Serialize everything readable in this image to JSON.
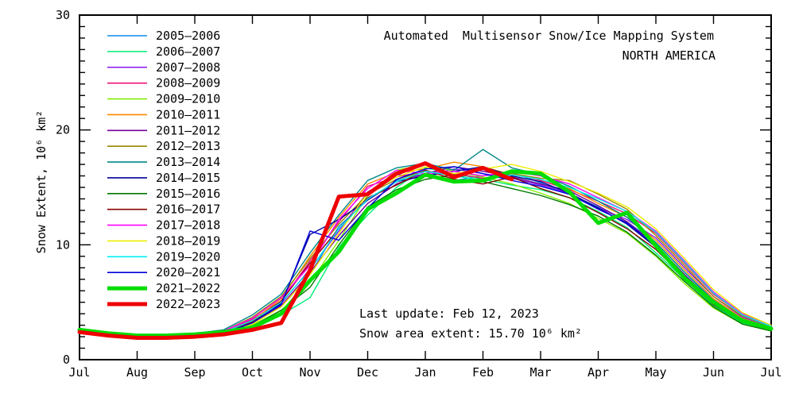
{
  "chart_data": {
    "type": "line",
    "title": "Automated  Multisensor Snow/Ice Mapping System",
    "subtitle": "NORTH AMERICA",
    "ylabel": "Snow Extent, 10⁶ km²",
    "xlabel": "",
    "annotations": {
      "last_update": "Last update: Feb 12, 2023",
      "snow_extent": "Snow area extent: 15.70 10⁶ km²"
    },
    "x_tick_labels": [
      "Jul",
      "Aug",
      "Sep",
      "Oct",
      "Nov",
      "Dec",
      "Jan",
      "Feb",
      "Mar",
      "Apr",
      "May",
      "Jun",
      "Jul"
    ],
    "y_tick_labels": [
      "0",
      "10",
      "20",
      "30"
    ],
    "y_tick_values": [
      0,
      10,
      20,
      30
    ],
    "ylim": [
      0,
      30
    ],
    "xlim_months": [
      0,
      12
    ],
    "y_minor_step": 1,
    "grid": false,
    "legend_position": "inside-top-left",
    "x": [
      0,
      0.5,
      1,
      1.5,
      2,
      2.5,
      3,
      3.5,
      4,
      4.5,
      5,
      5.5,
      6,
      6.5,
      7,
      7.5,
      8,
      8.5,
      9,
      9.5,
      10,
      10.5,
      11,
      11.5,
      12
    ],
    "series": [
      {
        "name": "2005–2006",
        "color": "#0f8ce8",
        "width": 1.4,
        "values": [
          2.6,
          2.3,
          2.1,
          2.0,
          2.1,
          2.4,
          3.1,
          4.6,
          7.4,
          11.6,
          13.9,
          15.6,
          16.2,
          15.6,
          16.0,
          16.3,
          15.4,
          14.4,
          13.3,
          12.0,
          10.2,
          7.6,
          5.2,
          3.6,
          2.8
        ]
      },
      {
        "name": "2006–2007",
        "color": "#00ee77",
        "width": 1.4,
        "values": [
          2.4,
          2.1,
          2.0,
          1.9,
          2.0,
          2.2,
          2.7,
          3.9,
          5.4,
          9.8,
          12.6,
          15.0,
          16.7,
          16.2,
          15.7,
          15.2,
          14.8,
          14.1,
          12.9,
          11.5,
          9.3,
          7.0,
          4.7,
          3.2,
          2.6
        ]
      },
      {
        "name": "2007–2008",
        "color": "#8818ee",
        "width": 1.4,
        "values": [
          2.5,
          2.2,
          2.0,
          2.0,
          2.1,
          2.4,
          3.2,
          4.9,
          7.9,
          11.2,
          14.6,
          16.1,
          16.0,
          16.6,
          16.2,
          15.8,
          15.2,
          14.5,
          13.2,
          12.2,
          10.6,
          8.0,
          5.5,
          3.7,
          2.9
        ]
      },
      {
        "name": "2008–2009",
        "color": "#ee1177",
        "width": 1.4,
        "values": [
          2.6,
          2.2,
          2.1,
          2.0,
          2.2,
          2.5,
          3.5,
          5.1,
          8.6,
          12.0,
          15.1,
          15.9,
          16.4,
          16.2,
          15.8,
          16.2,
          15.6,
          14.8,
          13.8,
          12.7,
          11.0,
          8.4,
          5.7,
          3.9,
          3.0
        ]
      },
      {
        "name": "2009–2010",
        "color": "#7fee00",
        "width": 1.4,
        "values": [
          2.4,
          2.1,
          1.9,
          1.9,
          2.0,
          2.3,
          3.0,
          4.3,
          6.7,
          10.4,
          14.3,
          16.5,
          17.0,
          16.4,
          15.9,
          15.3,
          14.5,
          13.6,
          12.3,
          11.0,
          9.0,
          6.6,
          4.5,
          3.1,
          2.5
        ]
      },
      {
        "name": "2010–2011",
        "color": "#ff8800",
        "width": 1.4,
        "values": [
          2.5,
          2.2,
          2.1,
          2.0,
          2.1,
          2.4,
          3.4,
          5.3,
          9.0,
          12.4,
          15.3,
          16.3,
          16.6,
          17.2,
          16.8,
          16.1,
          15.7,
          14.9,
          13.6,
          12.4,
          10.4,
          7.8,
          5.3,
          3.6,
          2.8
        ]
      },
      {
        "name": "2011–2012",
        "color": "#770099",
        "width": 1.4,
        "values": [
          2.5,
          2.2,
          2.0,
          2.0,
          2.1,
          2.4,
          3.1,
          4.7,
          7.6,
          10.8,
          13.6,
          15.3,
          16.2,
          16.8,
          16.4,
          15.9,
          15.3,
          14.7,
          13.4,
          12.0,
          10.0,
          7.4,
          5.0,
          3.4,
          2.7
        ]
      },
      {
        "name": "2012–2013",
        "color": "#998800",
        "width": 1.4,
        "values": [
          2.6,
          2.3,
          2.1,
          2.0,
          2.2,
          2.5,
          3.7,
          5.5,
          8.8,
          11.8,
          14.4,
          15.7,
          16.4,
          16.0,
          16.6,
          16.2,
          15.8,
          15.6,
          14.4,
          13.1,
          10.8,
          8.2,
          5.5,
          3.8,
          2.9
        ]
      },
      {
        "name": "2013–2014",
        "color": "#008888",
        "width": 1.4,
        "values": [
          2.7,
          2.4,
          2.2,
          2.1,
          2.3,
          2.6,
          3.9,
          5.7,
          9.3,
          12.6,
          15.6,
          16.7,
          17.1,
          16.5,
          18.3,
          16.7,
          16.1,
          15.1,
          13.8,
          12.4,
          10.2,
          7.6,
          5.1,
          3.5,
          2.8
        ]
      },
      {
        "name": "2014–2015",
        "color": "#000099",
        "width": 1.4,
        "values": [
          2.5,
          2.2,
          2.0,
          1.9,
          2.0,
          2.3,
          3.2,
          4.9,
          10.9,
          12.2,
          13.9,
          15.5,
          16.0,
          16.4,
          16.8,
          16.0,
          15.5,
          14.5,
          13.2,
          11.8,
          9.8,
          7.2,
          4.9,
          3.3,
          2.6
        ]
      },
      {
        "name": "2015–2016",
        "color": "#007700",
        "width": 1.4,
        "values": [
          2.4,
          2.1,
          2.0,
          1.9,
          2.0,
          2.2,
          2.9,
          4.3,
          6.3,
          10.0,
          13.3,
          14.8,
          15.7,
          16.1,
          15.5,
          14.9,
          14.3,
          13.5,
          12.5,
          11.1,
          9.1,
          6.8,
          4.6,
          3.1,
          2.5
        ]
      },
      {
        "name": "2016–2017",
        "color": "#880000",
        "width": 1.4,
        "values": [
          2.5,
          2.2,
          2.1,
          2.0,
          2.1,
          2.4,
          3.3,
          5.1,
          8.4,
          11.4,
          14.1,
          15.2,
          16.5,
          15.7,
          15.3,
          15.9,
          14.9,
          14.1,
          12.8,
          11.4,
          9.6,
          7.1,
          4.8,
          3.3,
          2.6
        ]
      },
      {
        "name": "2017–2018",
        "color": "#ff00ff",
        "width": 1.4,
        "values": [
          2.6,
          2.3,
          2.1,
          2.0,
          2.2,
          2.5,
          3.6,
          5.4,
          8.2,
          12.2,
          14.9,
          16.5,
          16.2,
          16.4,
          16.0,
          16.4,
          16.0,
          15.3,
          14.1,
          12.9,
          11.2,
          8.6,
          5.9,
          4.0,
          3.0
        ]
      },
      {
        "name": "2018–2019",
        "color": "#eeee00",
        "width": 1.4,
        "values": [
          2.5,
          2.2,
          2.0,
          2.0,
          2.1,
          2.3,
          3.1,
          4.6,
          7.4,
          11.0,
          14.5,
          15.9,
          16.8,
          16.2,
          16.6,
          17.0,
          16.4,
          15.5,
          14.5,
          13.3,
          11.4,
          8.8,
          6.1,
          4.1,
          3.0
        ]
      },
      {
        "name": "2019–2020",
        "color": "#00eeee",
        "width": 1.4,
        "values": [
          2.6,
          2.3,
          2.1,
          2.1,
          2.2,
          2.4,
          3.4,
          5.0,
          7.8,
          11.4,
          14.0,
          15.5,
          16.4,
          16.0,
          15.6,
          16.1,
          15.7,
          15.0,
          14.0,
          12.9,
          11.1,
          8.5,
          5.8,
          3.9,
          2.9
        ]
      },
      {
        "name": "2020–2021",
        "color": "#0000dd",
        "width": 1.4,
        "values": [
          2.5,
          2.2,
          2.0,
          1.9,
          2.1,
          2.3,
          3.2,
          4.8,
          11.2,
          10.4,
          13.2,
          15.7,
          16.6,
          16.8,
          16.2,
          15.6,
          15.1,
          14.4,
          13.1,
          11.9,
          9.9,
          7.3,
          5.0,
          3.4,
          2.7
        ]
      },
      {
        "name": "2021–2022",
        "color": "#00dd00",
        "width": 5,
        "values": [
          2.6,
          2.3,
          2.1,
          2.1,
          2.2,
          2.4,
          2.8,
          4.0,
          6.9,
          9.4,
          13.1,
          14.5,
          16.1,
          15.5,
          15.6,
          16.4,
          16.2,
          14.6,
          11.9,
          12.8,
          9.9,
          7.1,
          5.0,
          3.4,
          2.7
        ]
      },
      {
        "name": "2022–2023",
        "color": "#ee0000",
        "width": 5,
        "values": [
          2.4,
          2.1,
          1.9,
          1.9,
          2.0,
          2.2,
          2.6,
          3.2,
          7.8,
          14.2,
          14.4,
          16.2,
          17.1,
          15.9,
          16.7,
          15.7
        ]
      }
    ]
  }
}
